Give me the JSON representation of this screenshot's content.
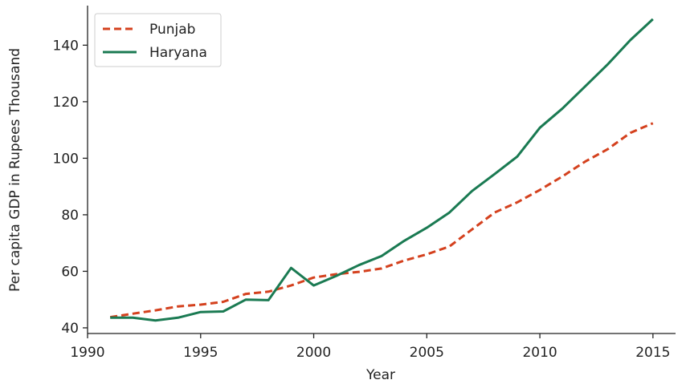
{
  "chart_data": {
    "type": "line",
    "xlabel": "Year",
    "ylabel": "Per capita GDP in Rupees Thousand",
    "xlim": [
      1990,
      2016
    ],
    "ylim": [
      38,
      154
    ],
    "xticks": [
      1990,
      1995,
      2000,
      2005,
      2010,
      2015
    ],
    "yticks": [
      40,
      60,
      80,
      100,
      120,
      140
    ],
    "grid": false,
    "legend_position": "top-left",
    "x": [
      1991,
      1992,
      1993,
      1994,
      1995,
      1996,
      1997,
      1998,
      1999,
      2000,
      2001,
      2002,
      2003,
      2004,
      2005,
      2006,
      2007,
      2008,
      2009,
      2010,
      2011,
      2012,
      2013,
      2014,
      2015
    ],
    "series": [
      {
        "name": "Punjab",
        "color": "#d4411e",
        "style": "dashed",
        "values": [
          43.8,
          45.0,
          46.2,
          47.6,
          48.2,
          49.2,
          52.0,
          52.8,
          55.0,
          57.8,
          59.0,
          59.8,
          61.0,
          63.8,
          66.0,
          68.8,
          74.8,
          80.8,
          84.4,
          88.8,
          93.6,
          98.8,
          103.2,
          109.0,
          112.4
        ]
      },
      {
        "name": "Haryana",
        "color": "#1a7a52",
        "style": "solid",
        "values": [
          43.6,
          43.6,
          42.6,
          43.6,
          45.6,
          45.8,
          50.0,
          49.8,
          61.2,
          55.0,
          58.4,
          62.2,
          65.4,
          70.8,
          75.4,
          80.8,
          88.4,
          94.4,
          100.6,
          110.8,
          117.6,
          125.4,
          133.2,
          141.8,
          149.2
        ]
      }
    ]
  }
}
